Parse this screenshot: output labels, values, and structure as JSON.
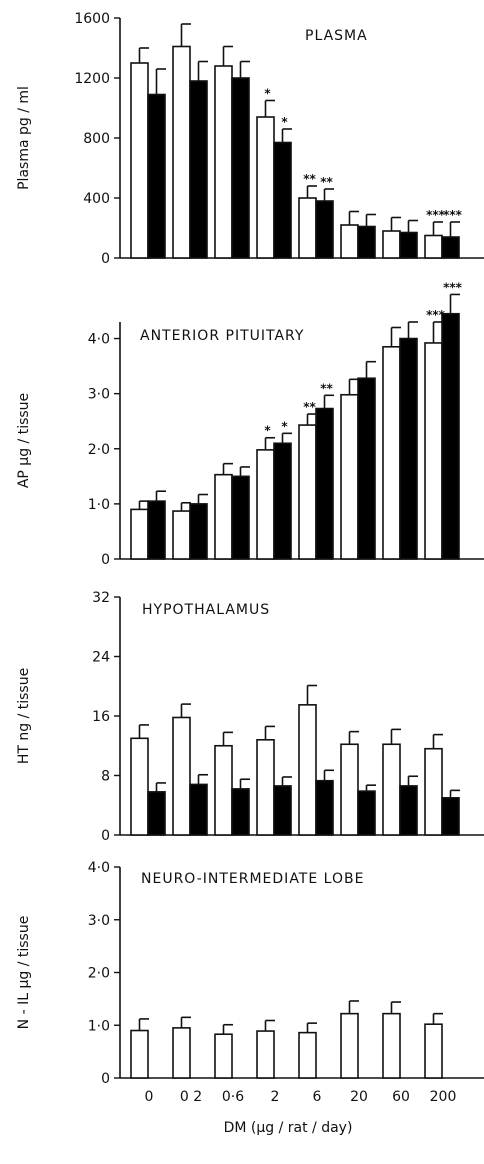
{
  "chart_data": {
    "type": "bar",
    "categories": [
      "0",
      "0 2",
      "0·6",
      "2",
      "6",
      "20",
      "60",
      "200"
    ],
    "xlabel": "DM (µg / rat / day)",
    "colors": {
      "open_bar": "#ffffff",
      "filled_bar": "#000000",
      "ink": "#111111"
    },
    "panels": [
      {
        "id": "plasma",
        "title": "PLASMA",
        "ylabel": "Plasma pg / ml",
        "ylim": [
          0,
          1600
        ],
        "yticks": [
          0,
          400,
          800,
          1200,
          1600
        ],
        "ytick_labels": [
          "0",
          "400",
          "800",
          "1200",
          "1600"
        ],
        "series": [
          {
            "fill": "open",
            "values": [
              1300,
              1410,
              1280,
              940,
              400,
              220,
              180,
              150
            ],
            "errors": [
              100,
              150,
              130,
              110,
              80,
              90,
              90,
              90
            ]
          },
          {
            "fill": "filled",
            "values": [
              1090,
              1180,
              1200,
              770,
              380,
              210,
              170,
              140
            ],
            "errors": [
              170,
              130,
              110,
              90,
              80,
              80,
              80,
              100
            ]
          }
        ],
        "significance": [
          {
            "category": 3,
            "series": 0,
            "text": "*"
          },
          {
            "category": 3,
            "series": 1,
            "text": "*"
          },
          {
            "category": 4,
            "series": 0,
            "text": "**"
          },
          {
            "category": 4,
            "series": 1,
            "text": "**"
          },
          {
            "category": 7,
            "series": 0,
            "text": "***"
          },
          {
            "category": 7,
            "series": 1,
            "text": "***"
          }
        ]
      },
      {
        "id": "anterior-pituitary",
        "title": "ANTERIOR PITUITARY",
        "ylabel": "AP µg / tissue",
        "ylim": [
          0,
          4.3
        ],
        "yticks": [
          0,
          1,
          2,
          3,
          4
        ],
        "ytick_labels": [
          "0",
          "1·0",
          "2·0",
          "3·0",
          "4·0"
        ],
        "series": [
          {
            "fill": "open",
            "values": [
              0.9,
              0.87,
              1.53,
              1.98,
              2.43,
              2.98,
              3.85,
              3.92
            ],
            "errors": [
              0.15,
              0.15,
              0.2,
              0.22,
              0.2,
              0.28,
              0.35,
              0.38
            ]
          },
          {
            "fill": "filled",
            "values": [
              1.05,
              1.0,
              1.5,
              2.1,
              2.73,
              3.28,
              4.0,
              4.45
            ],
            "errors": [
              0.18,
              0.17,
              0.17,
              0.18,
              0.24,
              0.3,
              0.3,
              0.35
            ]
          }
        ],
        "significance": [
          {
            "category": 3,
            "series": 0,
            "text": "*"
          },
          {
            "category": 3,
            "series": 1,
            "text": "*"
          },
          {
            "category": 4,
            "series": 0,
            "text": "**"
          },
          {
            "category": 4,
            "series": 1,
            "text": "**"
          },
          {
            "category": 7,
            "series": 0,
            "text": "***"
          },
          {
            "category": 7,
            "series": 1,
            "text": "***"
          }
        ]
      },
      {
        "id": "hypothalamus",
        "title": "HYPOTHALAMUS",
        "ylabel": "HT ng / tissue",
        "ylim": [
          0,
          32
        ],
        "yticks": [
          0,
          8,
          16,
          24,
          32
        ],
        "ytick_labels": [
          "0",
          "8",
          "16",
          "24",
          "32"
        ],
        "series": [
          {
            "fill": "open",
            "values": [
              13,
              15.8,
              12,
              12.8,
              17.5,
              12.2,
              12.2,
              11.6
            ],
            "errors": [
              1.8,
              1.8,
              1.8,
              1.8,
              2.6,
              1.7,
              2.0,
              1.9
            ]
          },
          {
            "fill": "filled",
            "values": [
              5.8,
              6.8,
              6.2,
              6.6,
              7.3,
              5.9,
              6.6,
              5.0
            ],
            "errors": [
              1.2,
              1.3,
              1.3,
              1.2,
              1.4,
              0.8,
              1.3,
              1.0
            ]
          }
        ],
        "significance": []
      },
      {
        "id": "neuro-intermediate-lobe",
        "title": "NEURO-INTERMEDIATE LOBE",
        "ylabel": "N - IL µg / tissue",
        "ylim": [
          0,
          4
        ],
        "yticks": [
          0,
          1,
          2,
          3,
          4
        ],
        "ytick_labels": [
          "0",
          "1·0",
          "2·0",
          "3·0",
          "4·0"
        ],
        "series": [
          {
            "fill": "open",
            "values": [
              0.9,
              0.95,
              0.83,
              0.89,
              0.86,
              1.22,
              1.22,
              1.02
            ],
            "errors": [
              0.22,
              0.2,
              0.18,
              0.2,
              0.18,
              0.24,
              0.22,
              0.2
            ]
          }
        ],
        "significance": []
      }
    ]
  }
}
